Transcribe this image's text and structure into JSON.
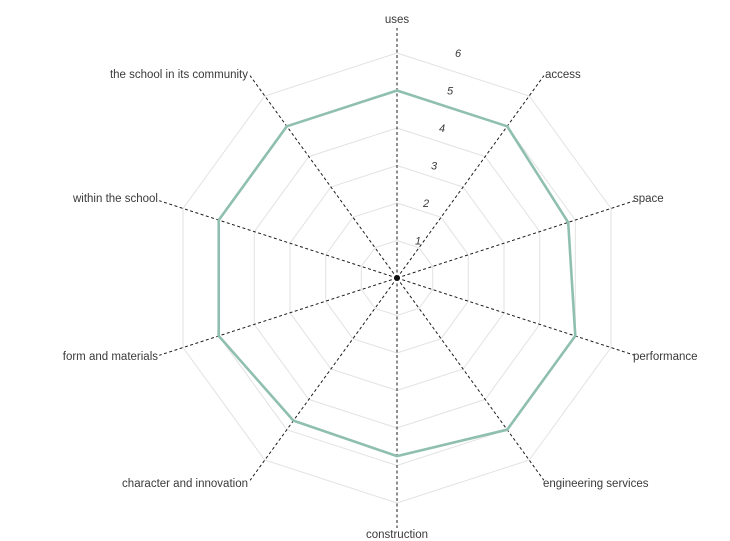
{
  "chart_data": {
    "type": "radar",
    "axes": [
      "uses",
      "access",
      "space",
      "performance",
      "engineering services",
      "construction",
      "character and innovation",
      "form and materials",
      "within the school",
      "the school in its community"
    ],
    "rlim": [
      0,
      6
    ],
    "ticks": [
      "1",
      "2",
      "3",
      "4",
      "5",
      "6"
    ],
    "series": [
      {
        "values": [
          5.0,
          5.0,
          4.8,
          5.0,
          5.0,
          4.75,
          4.7,
          5.0,
          5.0,
          5.0
        ]
      }
    ],
    "grid": true,
    "colors": {
      "series": "#8fbfb0",
      "grid": "#e2e2e2",
      "spoke": "#1c1c1c"
    }
  }
}
